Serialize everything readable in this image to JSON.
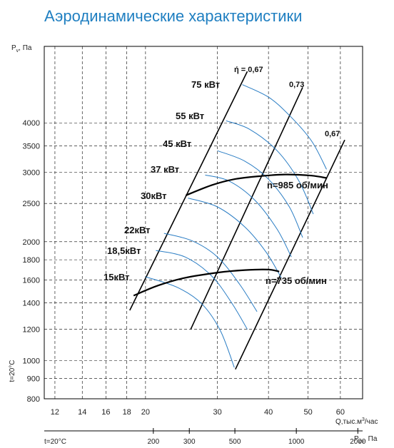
{
  "chart_data": {
    "type": "line",
    "title": "Аэродинамические характеристики",
    "ylabel_parts": [
      "P",
      "v",
      ", Па"
    ],
    "ylabel_temp": "t=20°C",
    "xlabel_parts": [
      "Q,тыс.м",
      "3",
      "/час"
    ],
    "x_scale": "log",
    "y_scale": "log",
    "xlim": [
      11.3,
      68
    ],
    "ylim": [
      800,
      6250
    ],
    "x_ticks": [
      12,
      14,
      16,
      18,
      20,
      30,
      40,
      50,
      60
    ],
    "y_ticks": [
      800,
      900,
      1000,
      1200,
      1400,
      1600,
      1800,
      2000,
      2500,
      3000,
      3500,
      4000
    ],
    "grid": true,
    "pdv_axis": {
      "left_label": "t=20°C",
      "label_parts": [
        "P",
        "dv",
        ", Па"
      ],
      "ticks": [
        {
          "value": 200,
          "q": 20.9
        },
        {
          "value": 300,
          "q": 25.6
        },
        {
          "value": 500,
          "q": 33.1
        },
        {
          "value": 1000,
          "q": 46.8
        },
        {
          "value": 2000,
          "q": 66.2
        }
      ]
    },
    "operating_lines": [
      {
        "name": "n=985 об/мин",
        "points": [
          [
            25.1,
            2620
          ],
          [
            29,
            2780
          ],
          [
            33,
            2880
          ],
          [
            38,
            2930
          ],
          [
            44,
            2960
          ],
          [
            51,
            2940
          ],
          [
            55.5,
            2900
          ]
        ]
      },
      {
        "name": "n=735 об/мин",
        "points": [
          [
            18.7,
            1460
          ],
          [
            21.5,
            1550
          ],
          [
            25,
            1620
          ],
          [
            30,
            1670
          ],
          [
            35,
            1695
          ],
          [
            40,
            1700
          ],
          [
            42.5,
            1680
          ]
        ]
      }
    ],
    "efficiency_lines": [
      {
        "label": "ή = 0,67",
        "points": [
          [
            18.3,
            1340
          ],
          [
            35.5,
            5400
          ]
        ]
      },
      {
        "label": "0,73",
        "points": [
          [
            25.8,
            1200
          ],
          [
            48.5,
            4920
          ]
        ]
      },
      {
        "label": "0,67",
        "points": [
          [
            33.2,
            950
          ],
          [
            61.5,
            3620
          ]
        ]
      }
    ],
    "power_curves": [
      {
        "label": "75 кВт",
        "points": [
          [
            34.5,
            5000
          ],
          [
            40,
            4650
          ],
          [
            45,
            4180
          ],
          [
            51,
            3600
          ],
          [
            55.5,
            3050
          ]
        ]
      },
      {
        "label": "55 кВт",
        "points": [
          [
            31.5,
            4050
          ],
          [
            36,
            3850
          ],
          [
            42,
            3400
          ],
          [
            47.5,
            2850
          ],
          [
            51.5,
            2350
          ]
        ]
      },
      {
        "label": "45 кВт",
        "points": [
          [
            30,
            3400
          ],
          [
            35,
            3200
          ],
          [
            40,
            2880
          ],
          [
            45,
            2450
          ],
          [
            48.5,
            2050
          ]
        ]
      },
      {
        "label": "37 кВт",
        "points": [
          [
            28,
            2950
          ],
          [
            32,
            2850
          ],
          [
            37,
            2550
          ],
          [
            42,
            2150
          ],
          [
            45.5,
            1830
          ]
        ]
      },
      {
        "label": "30кВт",
        "points": [
          [
            25.4,
            2580
          ],
          [
            30,
            2450
          ],
          [
            35,
            2180
          ],
          [
            39.5,
            1880
          ],
          [
            43,
            1620
          ]
        ]
      },
      {
        "label": "22кВт",
        "points": [
          [
            22.2,
            2100
          ],
          [
            26,
            2010
          ],
          [
            30,
            1830
          ],
          [
            34,
            1560
          ],
          [
            37.5,
            1330
          ]
        ]
      },
      {
        "label": "18,5кВт",
        "points": [
          [
            21.2,
            1900
          ],
          [
            25,
            1830
          ],
          [
            29,
            1640
          ],
          [
            32.5,
            1400
          ],
          [
            35.5,
            1200
          ]
        ]
      },
      {
        "label": "15кВт",
        "points": [
          [
            20,
            1630
          ],
          [
            24,
            1530
          ],
          [
            27.5,
            1390
          ],
          [
            30.5,
            1190
          ],
          [
            33,
            960
          ]
        ]
      }
    ],
    "labels": {
      "eta_top": "ή = 0,67",
      "eta_mid": "0,73",
      "eta_right": "0,67",
      "n985": "n=985 об/мин",
      "n735": "n=735 об/мин"
    },
    "colors": {
      "title": "#1f7fc1",
      "power_curve": "#2a7dc4",
      "line": "#000000",
      "grid": "#000000"
    }
  }
}
